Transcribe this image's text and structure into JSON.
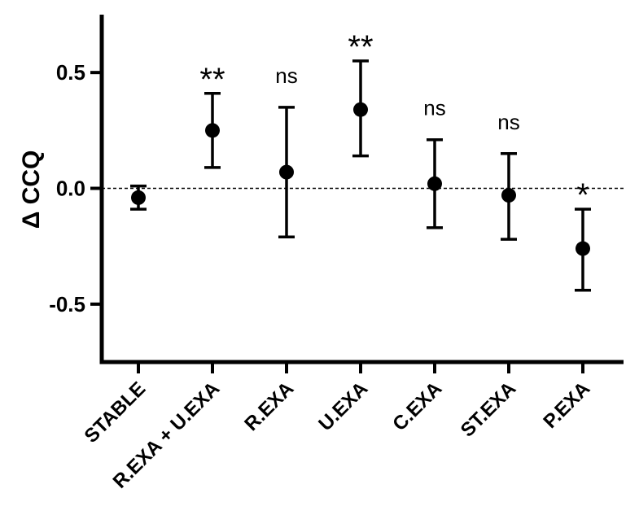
{
  "chart_data": {
    "type": "scatter",
    "title": "",
    "xlabel": "",
    "ylabel": "Δ CCQ",
    "ylim": [
      -0.75,
      0.75
    ],
    "yticks": [
      -0.5,
      0.0,
      0.5
    ],
    "ytick_labels": [
      "-0.5",
      "0.0",
      "0.5"
    ],
    "grid": false,
    "reference_line": {
      "y": 0.0,
      "style": "dashed"
    },
    "categories": [
      "STABLE",
      "R.EXA + U.EXA",
      "R.EXA",
      "U.EXA",
      "C.EXA",
      "ST.EXA",
      "P.EXA"
    ],
    "means": [
      -0.04,
      0.25,
      0.07,
      0.34,
      0.02,
      -0.03,
      -0.26
    ],
    "error_low": [
      -0.09,
      0.09,
      -0.21,
      0.14,
      -0.17,
      -0.22,
      -0.44
    ],
    "error_high": [
      0.01,
      0.41,
      0.35,
      0.55,
      0.21,
      0.15,
      -0.09
    ],
    "annotations": [
      "",
      "**",
      "ns",
      "**",
      "ns",
      "ns",
      "*"
    ]
  }
}
